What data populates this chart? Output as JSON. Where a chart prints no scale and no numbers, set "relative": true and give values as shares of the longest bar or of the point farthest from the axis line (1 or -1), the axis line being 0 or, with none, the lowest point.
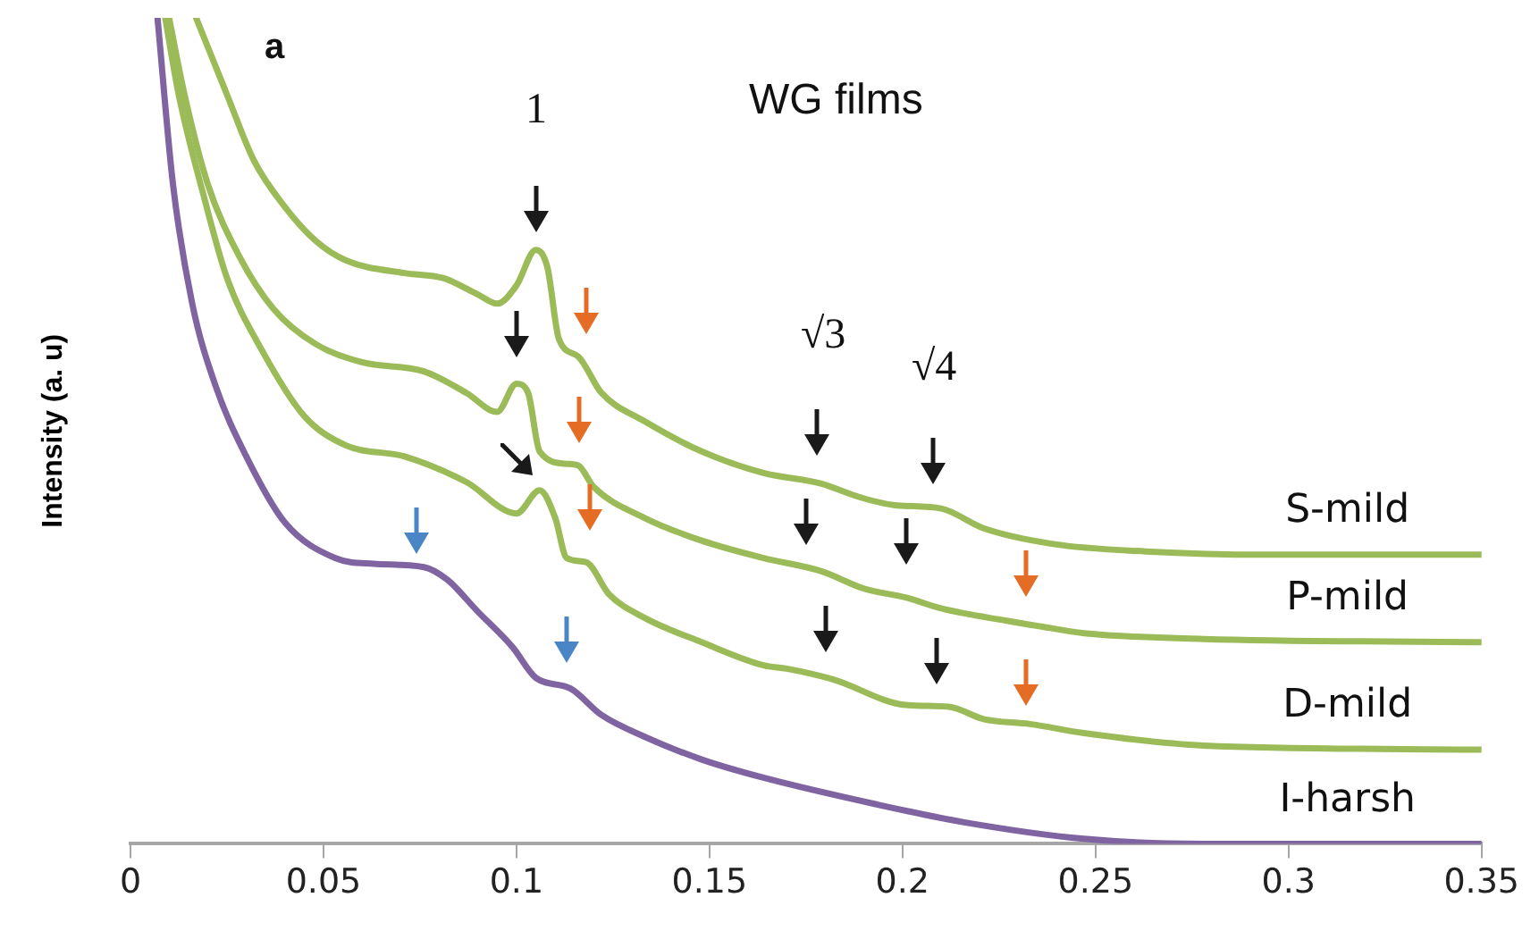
{
  "chart_data": {
    "type": "line",
    "relative": true,
    "ylabel": "Intensity (a. u)",
    "xlim": [
      0,
      0.35
    ],
    "xticks": [
      0,
      0.05,
      0.1,
      0.15,
      0.2,
      0.25,
      0.3,
      0.35
    ],
    "grid": false,
    "legend": false,
    "marker": "none",
    "line_style": "solid",
    "annotations": [
      "a",
      "WG films",
      "1",
      "√3",
      "√4"
    ],
    "series": [
      {
        "name": "S-mild",
        "color": "#9bbb59",
        "x": [
          0.017,
          0.025,
          0.032,
          0.04,
          0.048,
          0.056,
          0.071,
          0.081,
          0.09,
          0.095,
          0.1,
          0.105,
          0.108,
          0.111,
          0.116,
          0.122,
          0.133,
          0.148,
          0.164,
          0.179,
          0.188,
          0.198,
          0.21,
          0.221,
          0.239,
          0.263,
          0.294,
          0.35
        ],
        "values": [
          1.0,
          0.907,
          0.827,
          0.771,
          0.73,
          0.706,
          0.691,
          0.685,
          0.665,
          0.654,
          0.676,
          0.719,
          0.698,
          0.611,
          0.59,
          0.546,
          0.512,
          0.475,
          0.449,
          0.436,
          0.421,
          0.41,
          0.406,
          0.382,
          0.363,
          0.354,
          0.35,
          0.35
        ]
      },
      {
        "name": "P-mild",
        "color": "#9bbb59",
        "x": [
          0.01,
          0.014,
          0.02,
          0.028,
          0.037,
          0.048,
          0.06,
          0.076,
          0.087,
          0.095,
          0.1,
          0.103,
          0.106,
          0.113,
          0.116,
          0.12,
          0.133,
          0.148,
          0.164,
          0.179,
          0.19,
          0.201,
          0.21,
          0.227,
          0.236,
          0.247,
          0.278,
          0.35
        ],
        "values": [
          1.0,
          0.907,
          0.799,
          0.713,
          0.648,
          0.605,
          0.583,
          0.572,
          0.546,
          0.523,
          0.557,
          0.546,
          0.475,
          0.46,
          0.458,
          0.432,
          0.395,
          0.367,
          0.346,
          0.33,
          0.309,
          0.298,
          0.285,
          0.27,
          0.263,
          0.255,
          0.248,
          0.244
        ]
      },
      {
        "name": "D-mild",
        "color": "#9bbb59",
        "x": [
          0.009,
          0.0125,
          0.019,
          0.025,
          0.034,
          0.045,
          0.056,
          0.071,
          0.087,
          0.1,
          0.106,
          0.11,
          0.113,
          0.118,
          0.124,
          0.133,
          0.148,
          0.164,
          0.17,
          0.182,
          0.201,
          0.212,
          0.221,
          0.233,
          0.247,
          0.278,
          0.35
        ],
        "values": [
          1.0,
          0.907,
          0.784,
          0.685,
          0.598,
          0.518,
          0.482,
          0.469,
          0.438,
          0.4,
          0.428,
          0.395,
          0.346,
          0.341,
          0.302,
          0.274,
          0.244,
          0.216,
          0.212,
          0.199,
          0.168,
          0.166,
          0.151,
          0.145,
          0.134,
          0.119,
          0.114
        ]
      },
      {
        "name": "I-harsh",
        "color": "#8064a2",
        "x": [
          0.007,
          0.011,
          0.016,
          0.022,
          0.03,
          0.04,
          0.053,
          0.063,
          0.076,
          0.082,
          0.09,
          0.099,
          0.105,
          0.114,
          0.122,
          0.133,
          0.148,
          0.164,
          0.193,
          0.216,
          0.247,
          0.278,
          0.35
        ],
        "values": [
          1.0,
          0.799,
          0.654,
          0.555,
          0.469,
          0.389,
          0.346,
          0.339,
          0.335,
          0.32,
          0.281,
          0.238,
          0.201,
          0.188,
          0.156,
          0.13,
          0.102,
          0.08,
          0.048,
          0.026,
          0.006,
          0,
          0
        ]
      }
    ]
  }
}
